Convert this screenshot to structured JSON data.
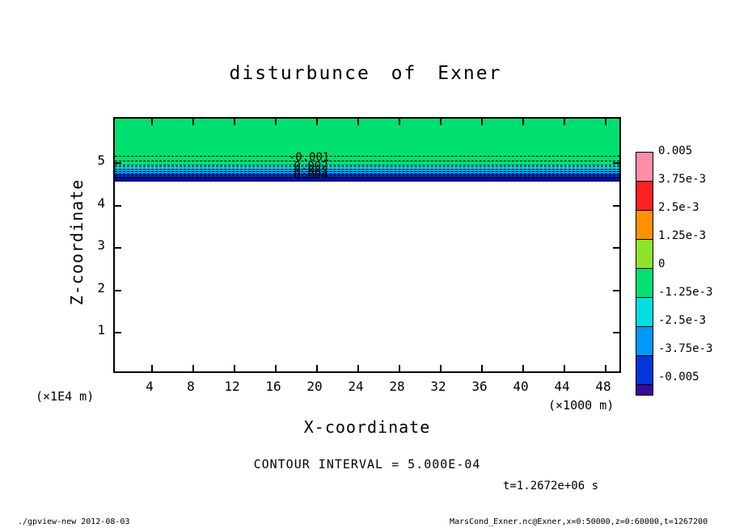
{
  "title": "disturbunce of Exner",
  "plot": {
    "x_axis": {
      "label": "X-coordinate",
      "unit": "(×1000 m)",
      "ticks": [
        4,
        8,
        12,
        16,
        20,
        24,
        28,
        32,
        36,
        40,
        44,
        48
      ]
    },
    "y_axis": {
      "label": "Z-coordinate",
      "unit": "(×1E4 m)",
      "ticks": [
        1,
        2,
        3,
        4,
        5
      ]
    },
    "contour_interval_label": "CONTOUR INTERVAL = 5.000E-04",
    "time_label": "t=1.2672e+06 s"
  },
  "colorbar": {
    "labels": [
      "0.005",
      "3.75e-3",
      "2.5e-3",
      "1.25e-3",
      "0",
      "-1.25e-3",
      "-2.5e-3",
      "-3.75e-3",
      "-0.005"
    ],
    "colors": [
      "#ff8da8",
      "#ff2020",
      "#ff9000",
      "#8ce32c",
      "#00e070",
      "#00e0e0",
      "#0098ff",
      "#0038d8"
    ],
    "under_color": "#3c0a96"
  },
  "footer": {
    "left": "./gpview-new  2012-08-03",
    "right": "MarsCond_Exner.nc@Exner,x=0:50000,z=0:60000,t=1267200"
  },
  "chart_data": {
    "type": "heatmap",
    "title": "disturbunce of Exner",
    "xlabel": "X-coordinate (×1000 m)",
    "ylabel": "Z-coordinate (×1E4 m)",
    "x_range": [
      0,
      50
    ],
    "z_range": [
      0,
      6
    ],
    "contour_interval": 0.0005,
    "time_label": "t=1.2672e+06 s",
    "colorbar_levels": [
      0.005,
      0.00375,
      0.0025,
      0.00125,
      0,
      -0.00125,
      -0.0025,
      -0.00375,
      -0.005
    ],
    "bands": [
      {
        "z_from": 4.95,
        "z_to": 6.1,
        "value_range": "0 to -1.25e-3",
        "color": "#00e070"
      },
      {
        "z_from": 4.84,
        "z_to": 4.95,
        "value_range": "-1.25e-3 to -2.5e-3",
        "color": "#00e0e0"
      },
      {
        "z_from": 4.74,
        "z_to": 4.84,
        "value_range": "-2.5e-3 to -3.75e-3",
        "color": "#0098ff"
      },
      {
        "z_from": 4.65,
        "z_to": 4.74,
        "value_range": "-3.75e-3 to -5e-3",
        "color": "#0038d8"
      },
      {
        "z_from": 4.55,
        "z_to": 4.65,
        "value_range": "below -5e-3",
        "color": "#0d0d8c"
      }
    ],
    "contour_lines_z": [
      5.16,
      5.04,
      4.95,
      4.9,
      4.84,
      4.79,
      4.74,
      4.7,
      4.65
    ],
    "contour_labels": [
      {
        "text": "-0.001",
        "x": 19.3,
        "z": 5.11
      },
      {
        "text": "0.002",
        "x": 19.5,
        "z": 4.91
      },
      {
        "text": "0.003",
        "x": 19.5,
        "z": 4.8
      },
      {
        "text": "0.004",
        "x": 19.5,
        "z": 4.69
      }
    ],
    "description": "Thin layer of negative Exner-function disturbance near z = 4.6-5.0 ×1E4 m; field between 0 and -1.25e-3 (green) everywhere above, deepening through cyan/blue bands to below -5e-3 (navy); white (zero) below the layer."
  }
}
